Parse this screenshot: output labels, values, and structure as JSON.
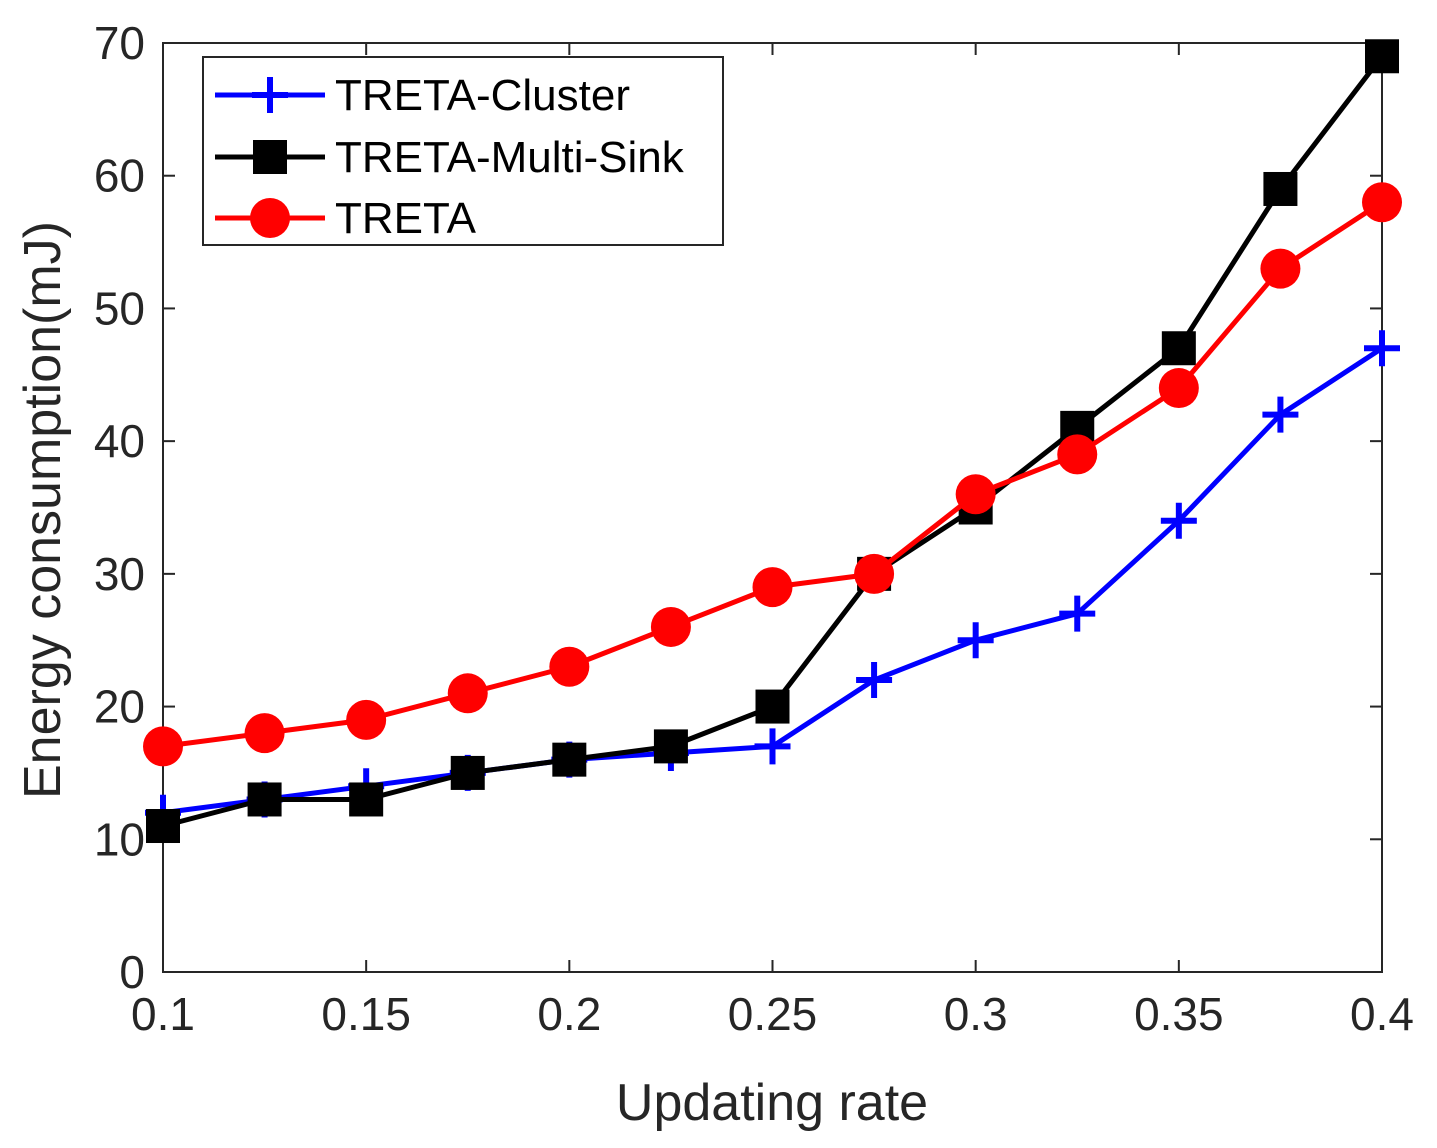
{
  "chart_data": {
    "type": "line",
    "title": "",
    "xlabel": "Updating rate",
    "ylabel": "Energy consumption(mJ)",
    "xlim": [
      0.1,
      0.4
    ],
    "ylim": [
      0,
      70
    ],
    "xticks": [
      0.1,
      0.15,
      0.2,
      0.25,
      0.3,
      0.35,
      0.4
    ],
    "xtick_labels": [
      "0.1",
      "0.15",
      "0.2",
      "0.25",
      "0.3",
      "0.35",
      "0.4"
    ],
    "yticks": [
      0,
      10,
      20,
      30,
      40,
      50,
      60,
      70
    ],
    "ytick_labels": [
      "0",
      "10",
      "20",
      "30",
      "40",
      "50",
      "60",
      "70"
    ],
    "legend_position": "top-left",
    "x": [
      0.1,
      0.125,
      0.15,
      0.175,
      0.2,
      0.225,
      0.25,
      0.275,
      0.3,
      0.325,
      0.35,
      0.375,
      0.4
    ],
    "series": [
      {
        "name": "TRETA-Cluster",
        "color": "#0000ff",
        "marker": "plus",
        "values": [
          12,
          13,
          14,
          15,
          16,
          16.5,
          17,
          22,
          25,
          27,
          34,
          42,
          47
        ]
      },
      {
        "name": "TRETA-Multi-Sink",
        "color": "#000000",
        "marker": "square",
        "values": [
          11,
          13,
          13,
          15,
          16,
          17,
          20,
          30,
          35,
          41,
          47,
          59,
          69
        ]
      },
      {
        "name": "TRETA",
        "color": "#ff0000",
        "marker": "circle",
        "values": [
          17,
          18,
          19,
          21,
          23,
          26,
          29,
          30,
          36,
          39,
          44,
          53,
          58
        ]
      }
    ]
  }
}
